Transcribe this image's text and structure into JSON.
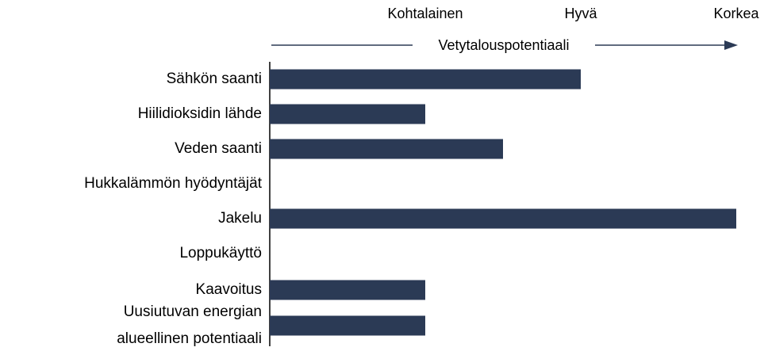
{
  "chart_data": {
    "type": "barh",
    "xlabel": "Vetytalouspotentiaali",
    "categories": [
      "Sähkön saanti",
      "Hiilidioksidin lähde",
      "Veden saanti",
      "Hukkalämmön hyödyntäjät",
      "Jakelu",
      "Loppukäyttö",
      "Kaavoitus",
      "Uusiutuvan energian alueellinen potentiaali"
    ],
    "values": [
      2,
      1,
      1.5,
      0,
      3,
      0,
      1,
      1
    ],
    "color": "#2b3a55",
    "xlim": [
      0,
      3
    ],
    "xticks": [
      {
        "value": 1,
        "label": "Kohtalainen"
      },
      {
        "value": 2,
        "label": "Hyvä"
      },
      {
        "value": 3,
        "label": "Korkea"
      }
    ]
  }
}
